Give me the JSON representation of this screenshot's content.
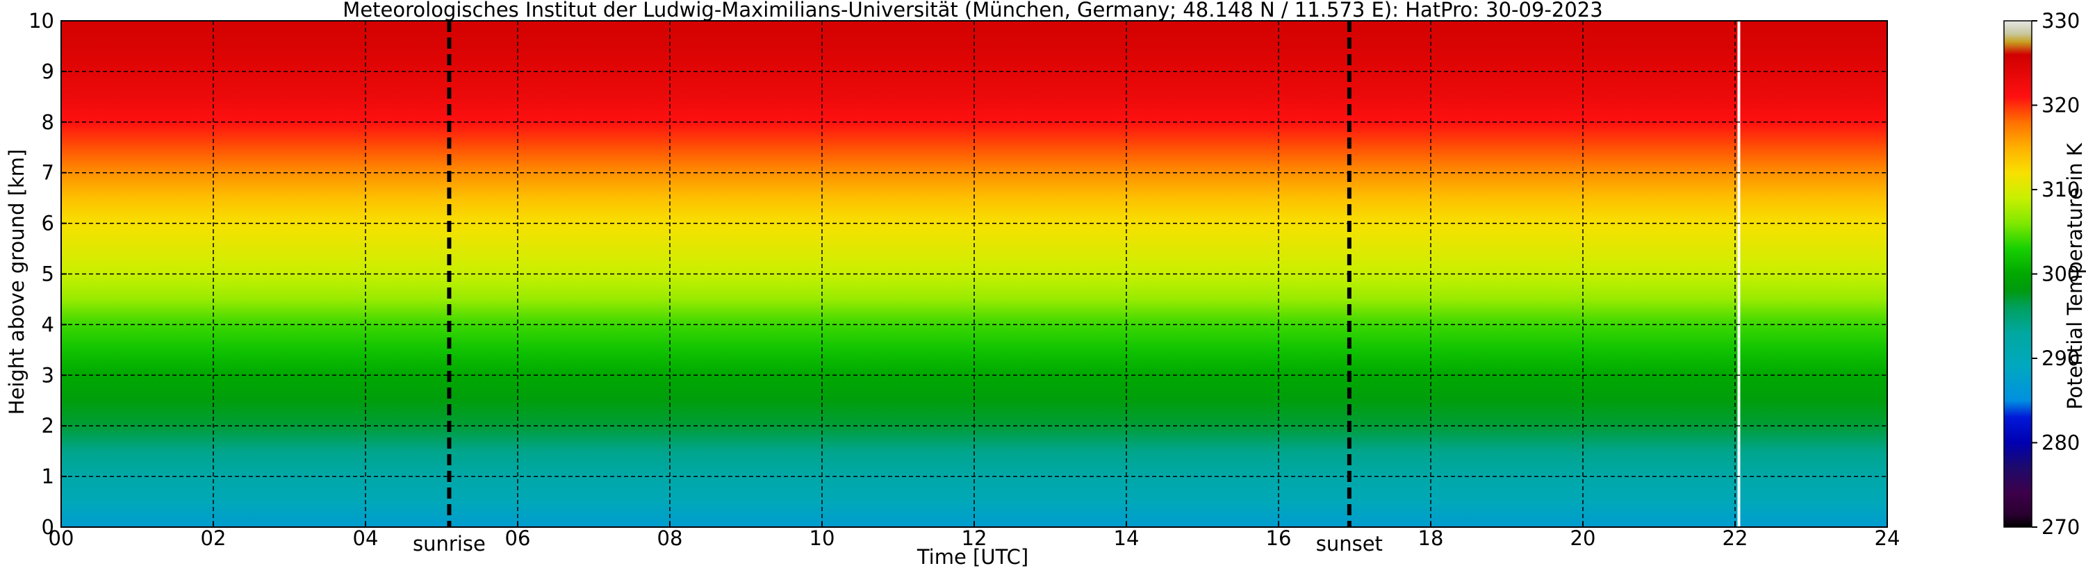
{
  "chart_data": {
    "type": "heatmap",
    "title": "Meteorologisches Institut der Ludwig-Maximilians-Universität (München, Germany; 48.148 N / 11.573 E):    HatPro: 30-09-2023",
    "xlabel": "Time [UTC]",
    "ylabel": "Height above ground [km]",
    "xlim": [
      0,
      24
    ],
    "ylim": [
      0,
      10
    ],
    "x_ticks": [
      "00",
      "02",
      "04",
      "06",
      "08",
      "10",
      "12",
      "14",
      "16",
      "18",
      "20",
      "22",
      "24"
    ],
    "y_ticks": [
      "0",
      "1",
      "2",
      "3",
      "4",
      "5",
      "6",
      "7",
      "8",
      "9",
      "10"
    ],
    "grid": true,
    "colorbar": {
      "label": "Potential Temperature in K",
      "range": [
        270,
        330
      ],
      "ticks": [
        "270",
        "280",
        "290",
        "300",
        "310",
        "320",
        "330"
      ],
      "stops": [
        {
          "value": 270,
          "color": "#000000"
        },
        {
          "value": 271.5,
          "color": "#2a0030"
        },
        {
          "value": 274,
          "color": "#3d004a"
        },
        {
          "value": 277,
          "color": "#1e0a6a"
        },
        {
          "value": 280,
          "color": "#0000b0"
        },
        {
          "value": 283,
          "color": "#0018d8"
        },
        {
          "value": 285,
          "color": "#0090e0"
        },
        {
          "value": 289,
          "color": "#00a8c0"
        },
        {
          "value": 293,
          "color": "#00a8a0"
        },
        {
          "value": 296,
          "color": "#00a060"
        },
        {
          "value": 298,
          "color": "#009a10"
        },
        {
          "value": 300,
          "color": "#00a800"
        },
        {
          "value": 303,
          "color": "#18d000"
        },
        {
          "value": 306,
          "color": "#80e800"
        },
        {
          "value": 309,
          "color": "#c8f000"
        },
        {
          "value": 312,
          "color": "#f8e000"
        },
        {
          "value": 315,
          "color": "#ffb000"
        },
        {
          "value": 318,
          "color": "#ff7000"
        },
        {
          "value": 321,
          "color": "#ff1010"
        },
        {
          "value": 326,
          "color": "#d00000"
        },
        {
          "value": 327.5,
          "color": "#c8a020"
        },
        {
          "value": 328.5,
          "color": "#c8c8a0"
        },
        {
          "value": 330,
          "color": "#e6e6e6"
        }
      ]
    },
    "profile": {
      "heights_km": [
        0,
        0.5,
        1,
        1.5,
        2,
        2.5,
        3,
        3.5,
        4,
        4.5,
        5,
        5.5,
        6,
        6.5,
        7,
        7.5,
        8,
        8.5,
        9,
        9.5,
        10
      ],
      "theta_K": [
        287,
        290,
        292,
        294,
        297,
        298.5,
        300,
        302,
        304,
        307,
        309,
        310.5,
        312,
        314,
        316.5,
        319,
        321,
        323,
        324,
        325,
        325.5
      ]
    },
    "vertical_markers": [
      {
        "x": 5.1,
        "label": "sunrise",
        "style": "dashed"
      },
      {
        "x": 16.93,
        "label": "sunset",
        "style": "dashed"
      }
    ],
    "data_gap_x": 22.05
  }
}
